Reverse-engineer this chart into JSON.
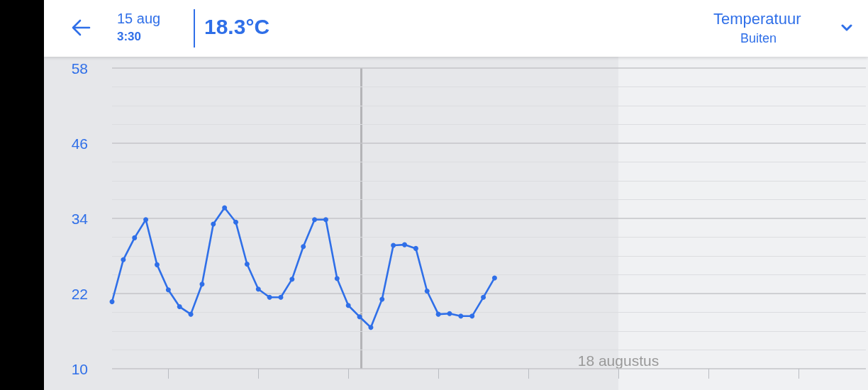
{
  "chart_data": {
    "type": "line",
    "title": "Temperatuur",
    "subtitle": "Buiten",
    "annotations": [
      "15 aug",
      "3:30",
      "18.3°C",
      "18 augustus"
    ],
    "categories": [
      null,
      null,
      null,
      null,
      null,
      null,
      null,
      null,
      null,
      null,
      null,
      null,
      null,
      null,
      null,
      null,
      null,
      null,
      null,
      null,
      null,
      null,
      null,
      null,
      null,
      null,
      null,
      null,
      null,
      null,
      null,
      null,
      null,
      null,
      null,
      null,
      null,
      null,
      null,
      null,
      null,
      null,
      null,
      null,
      null,
      null,
      null,
      null,
      null,
      null,
      null,
      null,
      null,
      null,
      null,
      null,
      null,
      null,
      null,
      null,
      null,
      null,
      null,
      null,
      null,
      null,
      null,
      null
    ],
    "series": [
      {
        "color": "#2f6fe8",
        "values": [
          20.7,
          27.4,
          30.9,
          33.8,
          26.6,
          22.6,
          19.9,
          18.7,
          23.5,
          33.1,
          35.7,
          33.4,
          26.7,
          22.7,
          21.4,
          21.4,
          24.3,
          29.5,
          33.8,
          33.8,
          24.4,
          20.1,
          18.3,
          16.6,
          21.1,
          29.7,
          29.8,
          29.2,
          22.4,
          18.7,
          18.8,
          18.4,
          18.4,
          21.4,
          24.5,
          null,
          null,
          null,
          null,
          null,
          null,
          null,
          null,
          null,
          null,
          null,
          null,
          null,
          null,
          null,
          null,
          null,
          null,
          null,
          null,
          null,
          null,
          null,
          null,
          null,
          null,
          null,
          null,
          null,
          null,
          null,
          null,
          null
        ]
      }
    ],
    "ylim": [
      10,
      58
    ],
    "yticks": [
      10,
      22,
      34,
      46,
      58
    ],
    "grid": "y",
    "marker": "circle",
    "line_style": "solid"
  }
}
